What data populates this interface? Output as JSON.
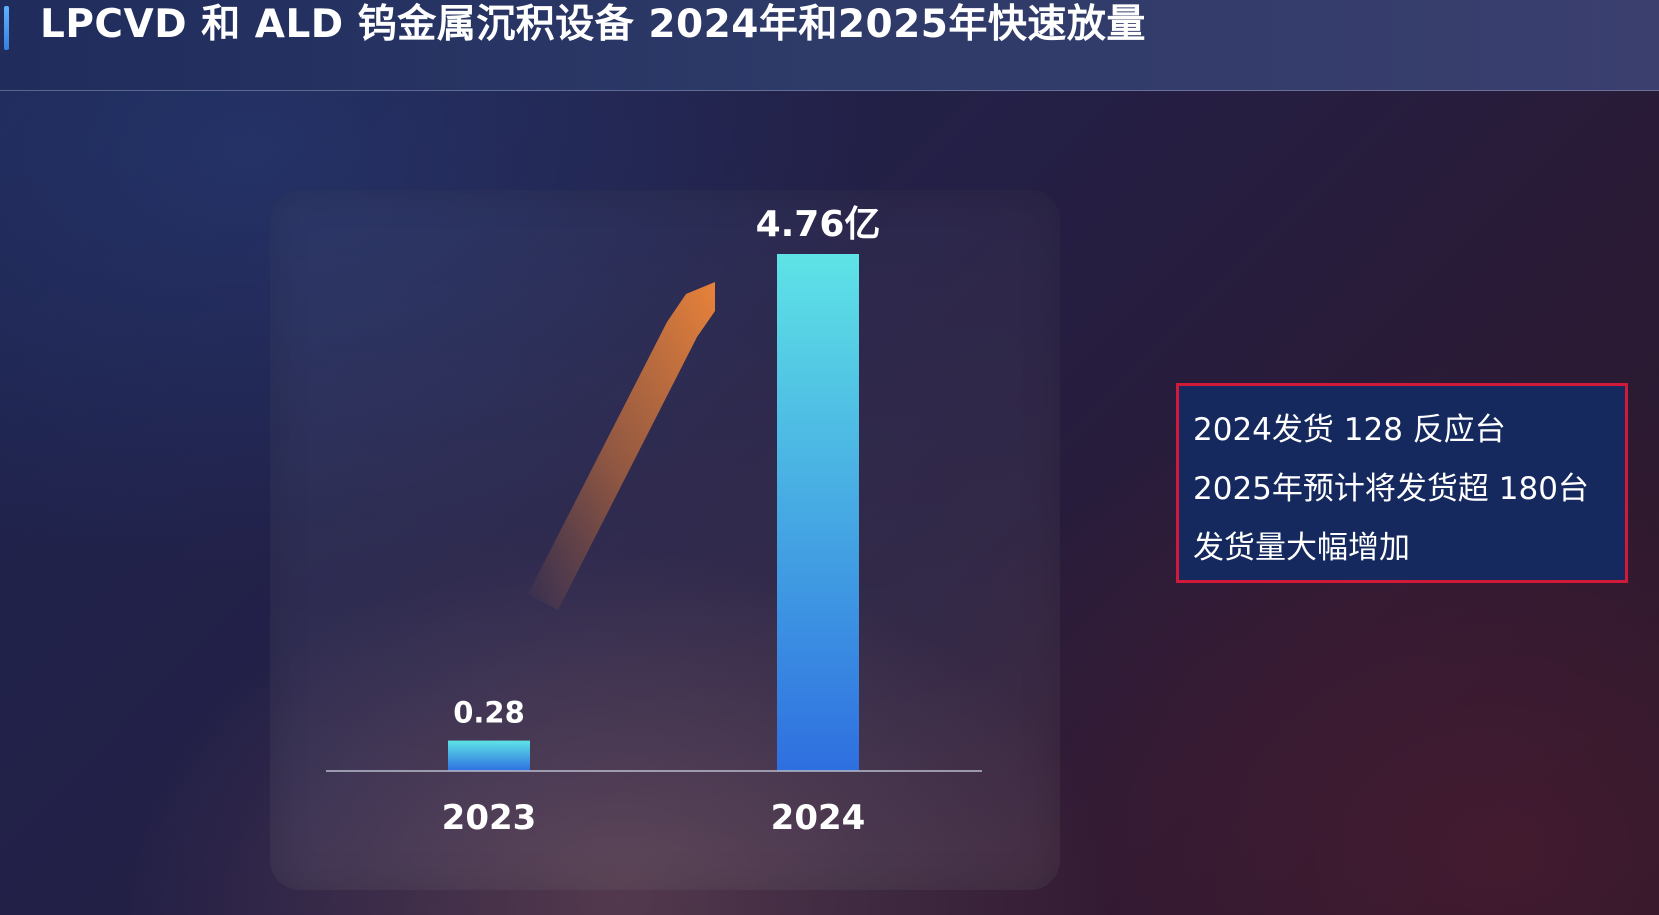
{
  "header": {
    "title": "LPCVD 和 ALD 钨金属沉积设备 2024年和2025年快速放量"
  },
  "colors": {
    "accent": "#4a8ff0",
    "bar_top": "#5ee3e6",
    "bar_bottom": "#2e6fe0",
    "arrow": "#e07b36",
    "box_border": "#d11a3a",
    "box_fill": "#15295e"
  },
  "chart_data": {
    "type": "bar",
    "categories": [
      "2023",
      "2024"
    ],
    "values": [
      0.28,
      4.76
    ],
    "data_labels": [
      "0.28",
      "4.76亿"
    ],
    "title": "",
    "xlabel": "",
    "ylabel": "",
    "ylim": [
      0,
      4.76
    ],
    "grid": false,
    "legend": "none",
    "annotation": "growth-arrow"
  },
  "info_box": {
    "lines": [
      "2024发货 128 反应台",
      "2025年预计将发货超 180台",
      "发货量大幅增加"
    ]
  }
}
